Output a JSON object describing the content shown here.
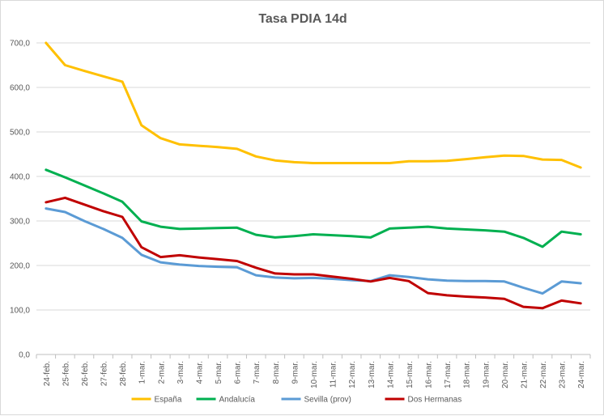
{
  "chart_data": {
    "type": "line",
    "title": "Tasa PDIA 14d",
    "xlabel": "",
    "ylabel": "",
    "ylim": [
      0,
      700
    ],
    "yticks": [
      "0,0",
      "100,0",
      "200,0",
      "300,0",
      "400,0",
      "500,0",
      "600,0",
      "700,0"
    ],
    "grid": true,
    "legend_position": "bottom",
    "categories": [
      "24-feb.",
      "25-feb.",
      "26-feb.",
      "27-feb.",
      "28-feb.",
      "1-mar.",
      "2-mar.",
      "3-mar.",
      "4-mar.",
      "5-mar.",
      "6-mar.",
      "7-mar.",
      "8-mar.",
      "9-mar.",
      "10-mar.",
      "11-mar.",
      "12-mar.",
      "13-mar.",
      "14-mar.",
      "15-mar.",
      "16-mar.",
      "17-mar.",
      "18-mar.",
      "19-mar.",
      "20-mar.",
      "21-mar.",
      "22-mar.",
      "23-mar.",
      "24-mar."
    ],
    "series": [
      {
        "name": "España",
        "color": "#FFC000",
        "values": [
          700,
          650,
          637,
          625,
          613,
          515,
          486,
          472,
          469,
          466,
          462,
          445,
          436,
          432,
          430,
          430,
          430,
          430,
          430,
          434,
          434,
          435,
          439,
          443,
          447,
          446,
          438,
          437,
          420
        ]
      },
      {
        "name": "Andalucía",
        "color": "#00B050",
        "values": [
          415,
          398,
          380,
          362,
          343,
          299,
          287,
          282,
          283,
          284,
          285,
          269,
          263,
          266,
          270,
          268,
          266,
          263,
          283,
          285,
          287,
          283,
          281,
          279,
          276,
          262,
          242,
          276,
          270
        ]
      },
      {
        "name": "Sevilla (prov)",
        "color": "#5B9BD5",
        "values": [
          328,
          320,
          300,
          282,
          262,
          224,
          207,
          202,
          199,
          197,
          196,
          178,
          173,
          171,
          172,
          170,
          167,
          165,
          178,
          174,
          169,
          166,
          165,
          165,
          164,
          150,
          137,
          164,
          160
        ]
      },
      {
        "name": "Dos Hermanas",
        "color": "#C00000",
        "values": [
          342,
          352,
          337,
          322,
          309,
          241,
          219,
          223,
          218,
          214,
          210,
          195,
          182,
          180,
          180,
          175,
          170,
          164,
          172,
          165,
          138,
          133,
          130,
          128,
          125,
          107,
          104,
          121,
          115
        ]
      }
    ]
  }
}
